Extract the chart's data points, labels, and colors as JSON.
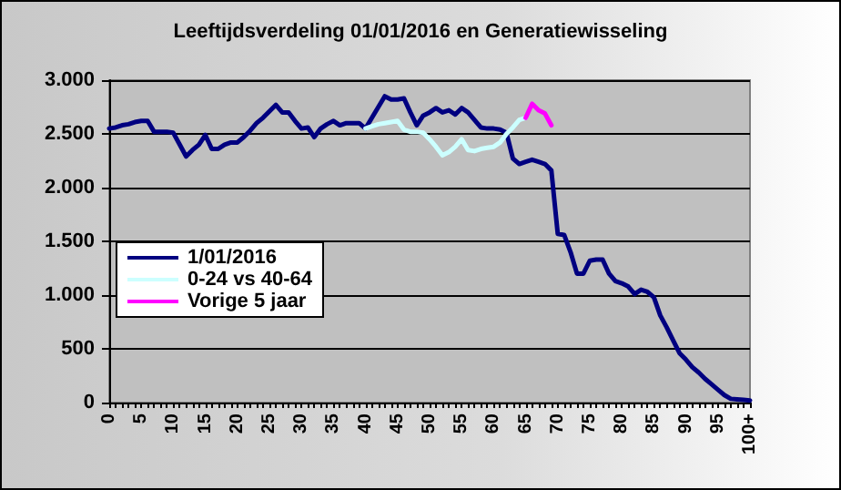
{
  "chart_data": {
    "type": "line",
    "title": "Leeftijdsverdeling 01/01/2016 en Generatiewisseling",
    "categories": [
      "0",
      null,
      null,
      null,
      null,
      "5",
      null,
      null,
      null,
      null,
      "10",
      null,
      null,
      null,
      null,
      "15",
      null,
      null,
      null,
      null,
      "20",
      null,
      null,
      null,
      null,
      "25",
      null,
      null,
      null,
      null,
      "30",
      null,
      null,
      null,
      null,
      "35",
      null,
      null,
      null,
      null,
      "40",
      null,
      null,
      null,
      null,
      "45",
      null,
      null,
      null,
      null,
      "50",
      null,
      null,
      null,
      null,
      "55",
      null,
      null,
      null,
      null,
      "60",
      null,
      null,
      null,
      null,
      "65",
      null,
      null,
      null,
      null,
      "70",
      null,
      null,
      null,
      null,
      "75",
      null,
      null,
      null,
      null,
      "80",
      null,
      null,
      null,
      null,
      "85",
      null,
      null,
      null,
      null,
      "90",
      null,
      null,
      null,
      null,
      "95",
      null,
      null,
      null,
      null,
      "100+"
    ],
    "series": [
      {
        "name": "1/01/2016",
        "color": "#000080",
        "values": [
          2550,
          2560,
          2580,
          2590,
          2610,
          2620,
          2620,
          2520,
          2520,
          2520,
          2510,
          2400,
          2290,
          2350,
          2400,
          2490,
          2360,
          2360,
          2400,
          2420,
          2420,
          2470,
          2530,
          2600,
          2650,
          2710,
          2770,
          2700,
          2700,
          2620,
          2550,
          2560,
          2470,
          2550,
          2590,
          2620,
          2580,
          2600,
          2600,
          2600,
          2550,
          2650,
          2750,
          2850,
          2820,
          2820,
          2830,
          2700,
          2580,
          2670,
          2700,
          2740,
          2700,
          2720,
          2680,
          2740,
          2700,
          2630,
          2560,
          2550,
          2550,
          2540,
          2510,
          2270,
          2220,
          2240,
          2260,
          2240,
          2220,
          2160,
          1570,
          1560,
          1400,
          1200,
          1200,
          1320,
          1330,
          1330,
          1200,
          1130,
          1110,
          1080,
          1010,
          1050,
          1030,
          980,
          810,
          700,
          580,
          460,
          400,
          330,
          280,
          220,
          170,
          120,
          70,
          35,
          30,
          25,
          20
        ]
      },
      {
        "name": "0-24 vs 40-64",
        "color": "#ccffff",
        "values": [
          null,
          null,
          null,
          null,
          null,
          null,
          null,
          null,
          null,
          null,
          null,
          null,
          null,
          null,
          null,
          null,
          null,
          null,
          null,
          null,
          null,
          null,
          null,
          null,
          null,
          null,
          null,
          null,
          null,
          null,
          null,
          null,
          null,
          null,
          null,
          null,
          null,
          null,
          null,
          null,
          2550,
          2570,
          2590,
          2600,
          2610,
          2620,
          2540,
          2520,
          2520,
          2510,
          2450,
          2380,
          2300,
          2330,
          2380,
          2450,
          2350,
          2340,
          2360,
          2370,
          2380,
          2420,
          2500,
          2560,
          2630,
          2650,
          null,
          null,
          null,
          null,
          null,
          null,
          null,
          null,
          null,
          null,
          null,
          null,
          null,
          null,
          null,
          null,
          null,
          null,
          null,
          null,
          null,
          null,
          null,
          null,
          null,
          null,
          null,
          null,
          null,
          null,
          null,
          null,
          null,
          null,
          null
        ]
      },
      {
        "name": "Vorige 5 jaar",
        "color": "#ff00ff",
        "values": [
          null,
          null,
          null,
          null,
          null,
          null,
          null,
          null,
          null,
          null,
          null,
          null,
          null,
          null,
          null,
          null,
          null,
          null,
          null,
          null,
          null,
          null,
          null,
          null,
          null,
          null,
          null,
          null,
          null,
          null,
          null,
          null,
          null,
          null,
          null,
          null,
          null,
          null,
          null,
          null,
          null,
          null,
          null,
          null,
          null,
          null,
          null,
          null,
          null,
          null,
          null,
          null,
          null,
          null,
          null,
          null,
          null,
          null,
          null,
          null,
          null,
          null,
          null,
          null,
          null,
          2650,
          2780,
          2720,
          2690,
          2580,
          null,
          null,
          null,
          null,
          null,
          null,
          null,
          null,
          null,
          null,
          null,
          null,
          null,
          null,
          null,
          null,
          null,
          null,
          null,
          null,
          null,
          null,
          null,
          null,
          null,
          null,
          null,
          null,
          null,
          null,
          null
        ]
      }
    ],
    "ylim": [
      0,
      3000
    ],
    "yticks": [
      0,
      500,
      {
        "value": 1000,
        "label": "1.000"
      },
      {
        "value": 1500,
        "label": "1.500"
      },
      {
        "value": 2000,
        "label": "2.000"
      },
      {
        "value": 2500,
        "label": "2.500"
      },
      {
        "value": 3000,
        "label": "3.000"
      }
    ],
    "grid": "y",
    "legend": "bottom left",
    "marker": "none",
    "line_style": "solid"
  }
}
